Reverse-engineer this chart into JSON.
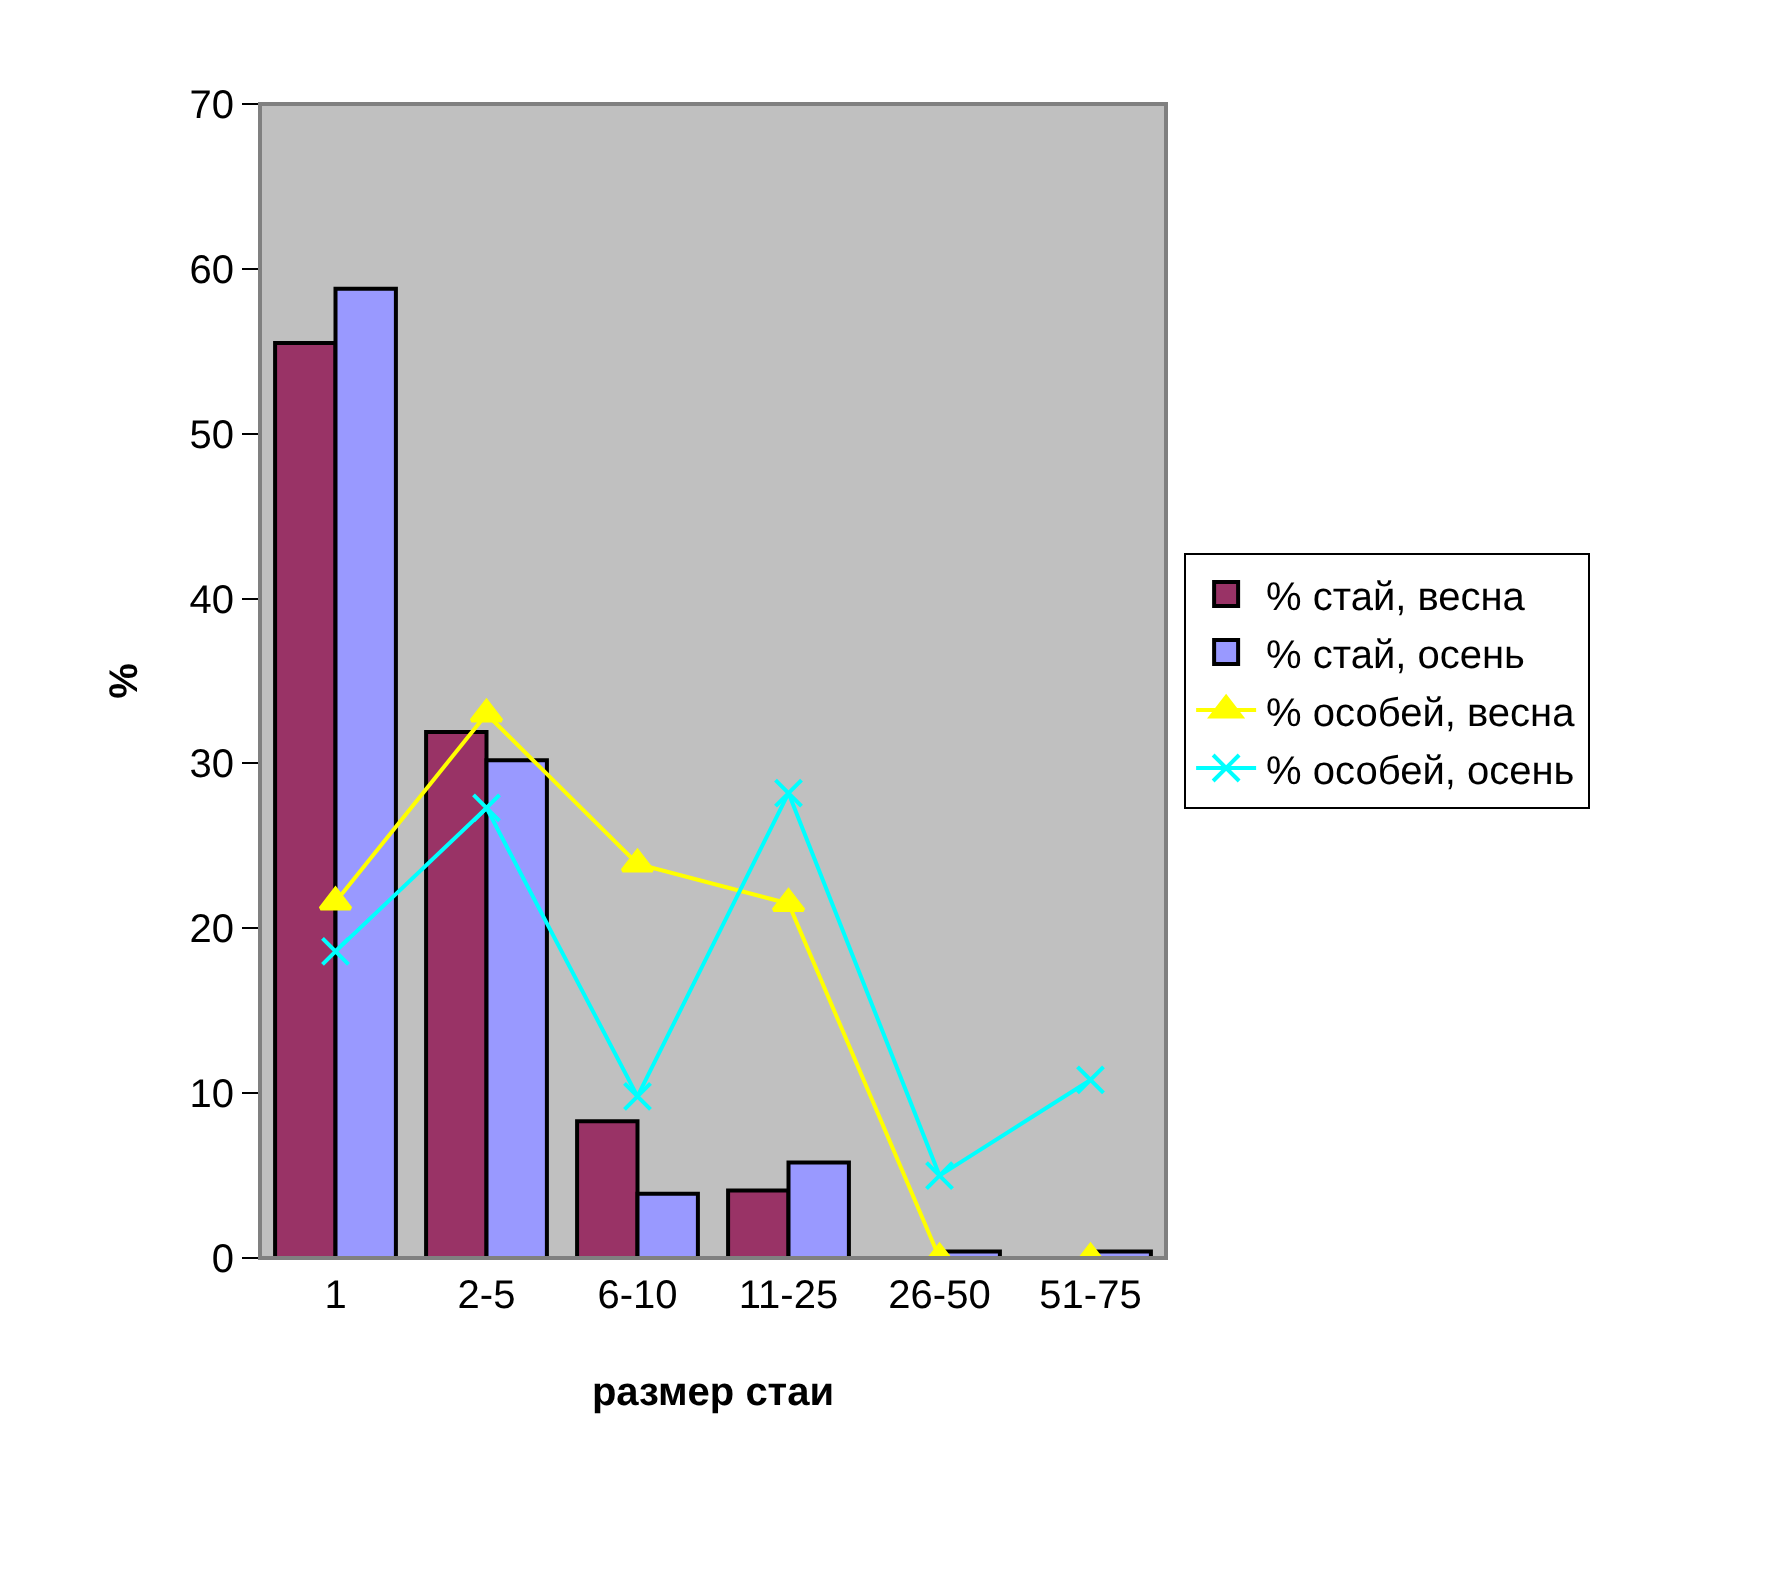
{
  "chart_data": {
    "type": "bar",
    "xlabel": "размер стаи",
    "ylabel": "%",
    "categories": [
      "1",
      "2-5",
      "6-10",
      "11-25",
      "26-50",
      "51-75"
    ],
    "series": [
      {
        "name": "% стай, весна",
        "color": "#993366",
        "values": [
          55.5,
          31.9,
          8.3,
          4.1,
          0,
          0
        ]
      },
      {
        "name": "% стай, осень",
        "color": "#9999ff",
        "values": [
          58.8,
          30.2,
          3.9,
          5.8,
          0.4,
          0.4
        ]
      },
      {
        "name": "% особей, весна",
        "type": "line",
        "color": "#ffff00",
        "marker": "triangle",
        "values": [
          21.6,
          33.0,
          23.9,
          21.5,
          0,
          0
        ]
      },
      {
        "name": "% особей, осень",
        "type": "line",
        "color": "#00ffff",
        "marker": "cross",
        "values": [
          18.6,
          27.3,
          9.8,
          28.2,
          5.0,
          10.8
        ]
      }
    ],
    "ylim": [
      0,
      70
    ],
    "yticks": [
      0,
      10,
      20,
      30,
      40,
      50,
      60,
      70
    ],
    "grid": false,
    "legend": "right"
  }
}
